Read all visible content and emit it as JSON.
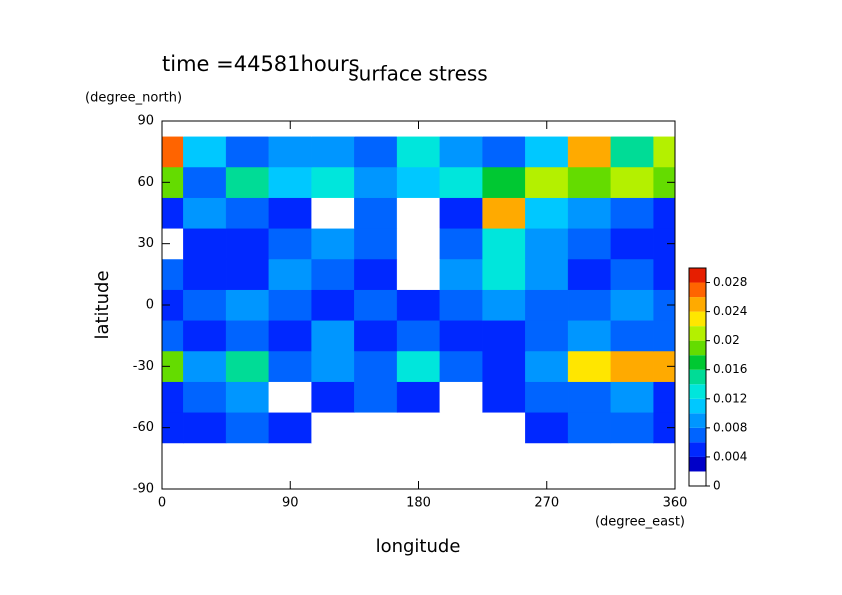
{
  "chart_data": {
    "type": "heatmap",
    "title": "surface stress",
    "subtitle": "time =44581hours",
    "x_label": "longitude",
    "x_unit": "(degree_east)",
    "y_label": "latitude",
    "y_unit": "(degree_north)",
    "xlim": [
      0,
      360
    ],
    "xticks": [
      0,
      90,
      180,
      270,
      360
    ],
    "ylim": [
      -90,
      90
    ],
    "yticks": [
      -90,
      -60,
      -30,
      0,
      30,
      60,
      90
    ],
    "x": [
      0,
      30,
      60,
      90,
      120,
      150,
      180,
      210,
      240,
      270,
      300,
      330,
      360
    ],
    "y": [
      -90,
      -75,
      -60,
      -45,
      -30,
      -15,
      0,
      15,
      30,
      45,
      60,
      75,
      90
    ],
    "z": [
      [
        0,
        0,
        0,
        0,
        0,
        0,
        0,
        0,
        0,
        0,
        0,
        0,
        0
      ],
      [
        0,
        0,
        0,
        0,
        0,
        0,
        0,
        0,
        0,
        0,
        0,
        0,
        0
      ],
      [
        0.004,
        0.004,
        0.006,
        0.004,
        0,
        0,
        0,
        0,
        0,
        0.004,
        0.006,
        0.006,
        0.004
      ],
      [
        0.004,
        0.006,
        0.008,
        0,
        0.004,
        0.006,
        0.004,
        0,
        0.004,
        0.006,
        0.006,
        0.008,
        0.004
      ],
      [
        0.018,
        0.008,
        0.014,
        0.006,
        0.008,
        0.006,
        0.012,
        0.006,
        0.004,
        0.008,
        0.022,
        0.024,
        0.024
      ],
      [
        0.006,
        0.004,
        0.006,
        0.004,
        0.008,
        0.004,
        0.006,
        0.004,
        0.004,
        0.006,
        0.008,
        0.006,
        0.006
      ],
      [
        0.004,
        0.006,
        0.008,
        0.006,
        0.004,
        0.006,
        0.004,
        0.006,
        0.008,
        0.006,
        0.006,
        0.008,
        0.006
      ],
      [
        0.006,
        0.004,
        0.004,
        0.008,
        0.006,
        0.004,
        0,
        0.008,
        0.012,
        0.008,
        0.004,
        0.006,
        0.004
      ],
      [
        0,
        0.004,
        0.004,
        0.006,
        0.008,
        0.006,
        0,
        0.006,
        0.012,
        0.008,
        0.006,
        0.004,
        0.004
      ],
      [
        0.004,
        0.008,
        0.006,
        0.004,
        0,
        0.006,
        0,
        0.004,
        0.024,
        0.01,
        0.008,
        0.006,
        0.004
      ],
      [
        0.018,
        0.006,
        0.014,
        0.01,
        0.012,
        0.008,
        0.01,
        0.012,
        0.016,
        0.02,
        0.018,
        0.02,
        0.018
      ],
      [
        0.026,
        0.01,
        0.006,
        0.008,
        0.008,
        0.006,
        0.012,
        0.008,
        0.006,
        0.01,
        0.024,
        0.014,
        0.02
      ],
      [
        0,
        0,
        0,
        0,
        0,
        0,
        0,
        0,
        0,
        0,
        0,
        0,
        0
      ]
    ],
    "levels": [
      0,
      0.002,
      0.004,
      0.006,
      0.008,
      0.01,
      0.012,
      0.014,
      0.016,
      0.018,
      0.02,
      0.022,
      0.024,
      0.026,
      0.028,
      0.03
    ],
    "colors": [
      "#ffffff",
      "#0000c8",
      "#0028ff",
      "#0064ff",
      "#0096ff",
      "#00c8ff",
      "#00e6dc",
      "#00dc96",
      "#00c832",
      "#64dc00",
      "#b4f000",
      "#ffe600",
      "#ffaa00",
      "#ff6400",
      "#e61e00"
    ],
    "cticks": [
      0,
      0.004,
      0.008,
      0.012,
      0.016,
      0.02,
      0.024,
      0.028
    ]
  }
}
